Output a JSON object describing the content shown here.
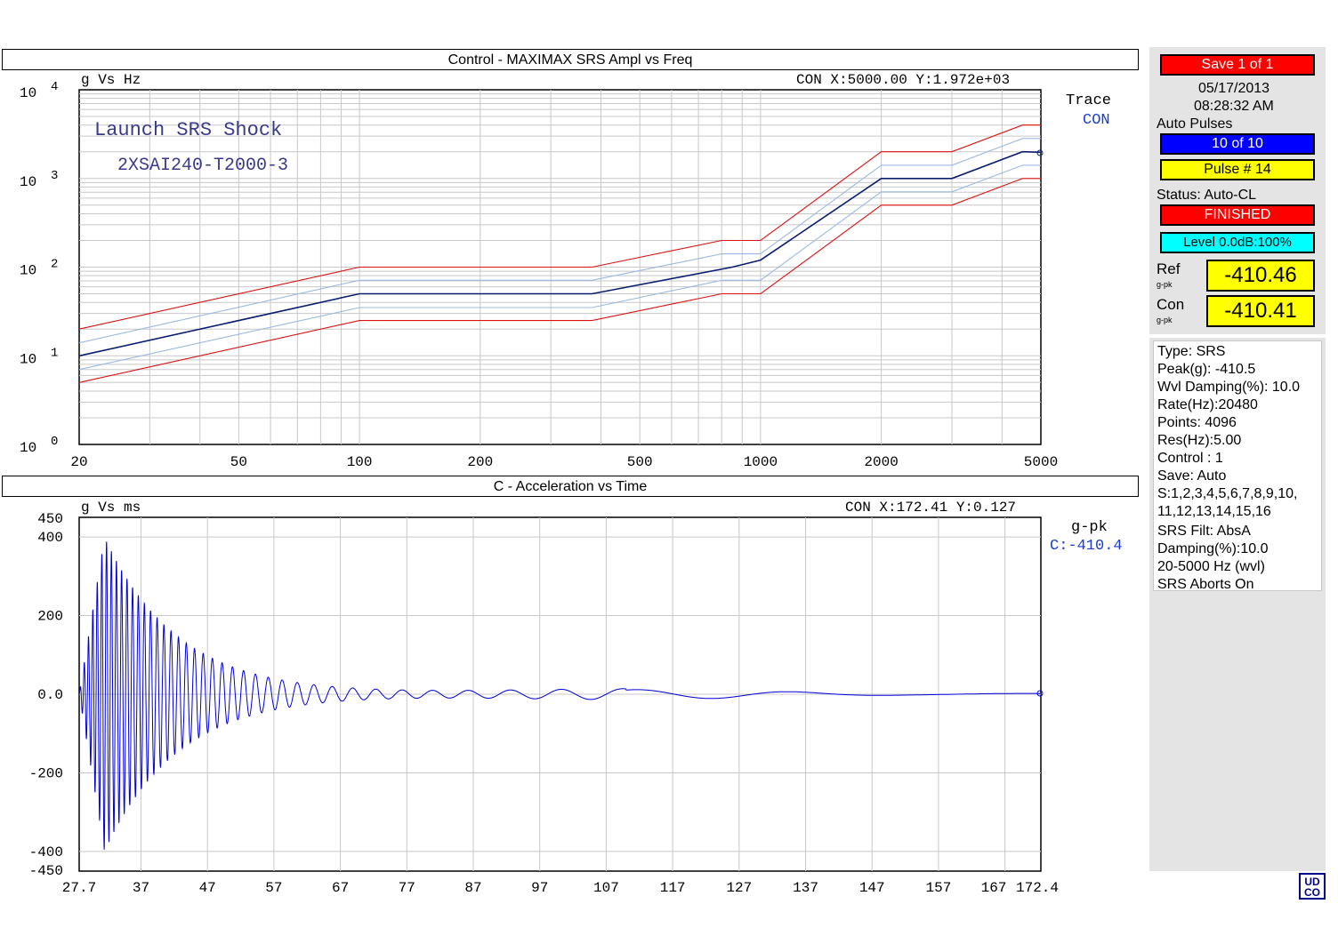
{
  "charts": {
    "srs": {
      "title": "Control - MAXIMAX SRS Ampl  vs  Freq",
      "units": "g  Vs  Hz",
      "cursor": "CON  X:5000.00  Y:1.972e+03",
      "annotation_line1": "Launch  SRS  Shock",
      "annotation_line2": "2XSAI240-T2000-3",
      "legend_title": "Trace",
      "legend_entry": "CON"
    },
    "time": {
      "title": "C - Acceleration  vs  Time",
      "units": "g  Vs  ms",
      "cursor": "CON  X:172.41  Y:0.127",
      "legend_title": "g-pk",
      "legend_entry": "C:-410.4"
    }
  },
  "chart_data": [
    {
      "type": "line",
      "title": "Control - MAXIMAX SRS Ampl  vs  Freq",
      "xscale": "log",
      "yscale": "log",
      "xlim": [
        20,
        5000
      ],
      "ylim": [
        1,
        10000
      ],
      "xticks": [
        20,
        50,
        100,
        200,
        500,
        1000,
        2000,
        5000
      ],
      "yticks": [
        {
          "base": "10",
          "exp": "0"
        },
        {
          "base": "10",
          "exp": "1"
        },
        {
          "base": "10",
          "exp": "2"
        },
        {
          "base": "10",
          "exp": "3"
        },
        {
          "base": "10",
          "exp": "4"
        }
      ],
      "grid": true,
      "series": [
        {
          "name": "CON",
          "color": "#0a1e6e",
          "x": [
            20,
            100,
            200,
            380,
            850,
            1000,
            2000,
            3000,
            4500,
            5000
          ],
          "y": [
            10,
            50,
            50,
            50,
            100,
            120,
            1000,
            1000,
            2000,
            1972
          ]
        },
        {
          "color": "#dd1111",
          "x": [
            20,
            100,
            380,
            800,
            1000,
            2000,
            3000,
            4500,
            5000
          ],
          "y": [
            20,
            100,
            100,
            200,
            200,
            2000,
            2000,
            4000,
            4000
          ]
        },
        {
          "color": "#dd1111",
          "x": [
            20,
            100,
            380,
            800,
            1000,
            2000,
            3000,
            4500,
            5000
          ],
          "y": [
            5,
            25,
            25,
            50,
            50,
            500,
            500,
            1000,
            1000
          ]
        },
        {
          "color": "#9cb8e0",
          "x": [
            20,
            100,
            380,
            800,
            1000,
            2000,
            3000,
            4500,
            5000
          ],
          "y": [
            14,
            71,
            71,
            141,
            141,
            1410,
            1410,
            2820,
            2820
          ]
        },
        {
          "color": "#9cb8e0",
          "x": [
            20,
            100,
            380,
            800,
            1000,
            2000,
            3000,
            4500,
            5000
          ],
          "y": [
            7,
            35,
            35,
            71,
            71,
            707,
            707,
            1410,
            1410
          ]
        }
      ],
      "legend": "right"
    },
    {
      "type": "line",
      "title": "C - Acceleration  vs  Time",
      "xlabel": "",
      "ylabel": "",
      "xlim": [
        27.7,
        172.4
      ],
      "ylim": [
        -450,
        450
      ],
      "xticks": [
        "27.7",
        "37",
        "47",
        "57",
        "67",
        "77",
        "87",
        "97",
        "107",
        "117",
        "127",
        "137",
        "147",
        "157",
        "167",
        "172.4"
      ],
      "yticks": [
        "450",
        "400",
        "200",
        "0.0",
        "-200",
        "-400",
        "-450"
      ],
      "grid": true,
      "series": [
        {
          "name": "C",
          "color": "#0000dd",
          "peak": -410.4,
          "description_params": {
            "peak_time": 31.5,
            "peak_amplitude": 400,
            "decay": "exponential"
          }
        }
      ],
      "legend": "right"
    }
  ],
  "side": {
    "save": "Save   1  of   1",
    "date": "05/17/2013",
    "time": "08:28:32 AM",
    "auto_pulses_label": "Auto Pulses",
    "auto_pulses": "10  of  10",
    "pulse": "Pulse #  14",
    "status_label": "Status: Auto-CL",
    "status": "FINISHED",
    "level": "Level 0.0dB:100%",
    "ref_label": "Ref",
    "ref_unit": "g-pk",
    "ref_value": "-410.46",
    "con_label": "Con",
    "con_unit": "g-pk",
    "con_value": "-410.41",
    "info": [
      "Type: SRS",
      "Peak(g): -410.5",
      "Wvl Damping(%): 10.0",
      "Rate(Hz):20480",
      "Points: 4096",
      "Res(Hz):5.00",
      "Control :  1",
      "Save: Auto",
      "S:1,2,3,4,5,6,7,8,9,10,",
      "11,12,13,14,15,16",
      "SRS Filt: AbsA",
      "Damping(%):10.0",
      "20-5000 Hz (wvl)",
      "SRS Aborts On"
    ],
    "colors": {
      "red": "#ff0000",
      "blue": "#0000ff",
      "yellow": "#ffff00",
      "cyan": "#00ffff"
    }
  },
  "logo": "UDCO"
}
